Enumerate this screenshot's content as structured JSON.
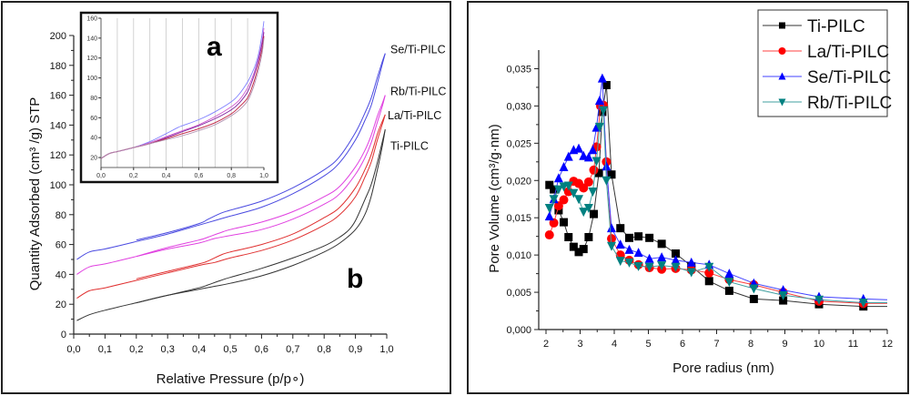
{
  "chart_data": [
    {
      "id": "isotherm",
      "type": "line",
      "title": "",
      "panel_label": "b",
      "xlabel": "Relative Pressure (p/p∘)",
      "ylabel": "Quantity Adsorbed (cm³ /g) STP",
      "xlim": [
        0,
        1.0
      ],
      "ylim": [
        0,
        200
      ],
      "xticks": [
        "0,0",
        "0,1",
        "0,2",
        "0,3",
        "0,4",
        "0,5",
        "0,6",
        "0,7",
        "0,8",
        "0,9",
        "1,0"
      ],
      "yticks": [
        "0",
        "20",
        "40",
        "60",
        "80",
        "100",
        "120",
        "140",
        "160",
        "180",
        "200"
      ],
      "grid": false,
      "legend": "inline labels at right end of curves",
      "series": [
        {
          "name": "Ti-PILC",
          "color": "#333333",
          "label_value": 137,
          "adsorption": {
            "x": [
              0.01,
              0.05,
              0.1,
              0.2,
              0.3,
              0.4,
              0.45,
              0.5,
              0.6,
              0.7,
              0.8,
              0.85,
              0.9,
              0.93,
              0.95,
              0.97,
              0.985,
              0.995
            ],
            "y": [
              9,
              13,
              16,
              21,
              26,
              30,
              32,
              34,
              39,
              46,
              55,
              61,
              70,
              80,
              92,
              110,
              125,
              137
            ]
          },
          "desorption": {
            "x": [
              0.2,
              0.3,
              0.4,
              0.43,
              0.47,
              0.5,
              0.6,
              0.7,
              0.8,
              0.85,
              0.88,
              0.9,
              0.93,
              0.95,
              0.97,
              0.985,
              0.995
            ],
            "y": [
              21,
              26,
              31,
              33,
              36,
              38,
              44,
              51,
              59,
              65,
              70,
              76,
              90,
              100,
              115,
              128,
              137
            ]
          }
        },
        {
          "name": "La/Ti-PILC",
          "color": "#e03030",
          "label_value": 147,
          "adsorption": {
            "x": [
              0.01,
              0.05,
              0.1,
              0.2,
              0.3,
              0.4,
              0.45,
              0.5,
              0.6,
              0.7,
              0.8,
              0.85,
              0.9,
              0.93,
              0.95,
              0.97,
              0.985,
              0.995
            ],
            "y": [
              24,
              29,
              31,
              36,
              41,
              46,
              48,
              51,
              56,
              63,
              73,
              80,
              92,
              105,
              115,
              130,
              140,
              147
            ]
          },
          "desorption": {
            "x": [
              0.2,
              0.3,
              0.4,
              0.43,
              0.47,
              0.5,
              0.6,
              0.7,
              0.8,
              0.85,
              0.9,
              0.93,
              0.95,
              0.97,
              0.985,
              0.995
            ],
            "y": [
              37,
              42,
              47,
              49,
              53,
              55,
              60,
              67,
              78,
              85,
              98,
              110,
              120,
              134,
              142,
              147
            ]
          }
        },
        {
          "name": "Rb/Ti-PILC",
          "color": "#e040e0",
          "label_value": 160,
          "adsorption": {
            "x": [
              0.01,
              0.05,
              0.1,
              0.2,
              0.3,
              0.4,
              0.45,
              0.5,
              0.6,
              0.7,
              0.8,
              0.85,
              0.9,
              0.93,
              0.95,
              0.97,
              0.985,
              0.995
            ],
            "y": [
              40,
              45,
              47,
              52,
              57,
              61,
              64,
              66,
              70,
              77,
              87,
              94,
              107,
              118,
              128,
              142,
              152,
              160
            ]
          },
          "desorption": {
            "x": [
              0.2,
              0.3,
              0.4,
              0.43,
              0.47,
              0.5,
              0.6,
              0.7,
              0.8,
              0.85,
              0.9,
              0.93,
              0.95,
              0.97,
              0.985,
              0.995
            ],
            "y": [
              52,
              58,
              63,
              65,
              68,
              70,
              75,
              82,
              92,
              99,
              112,
              123,
              133,
              146,
              154,
              160
            ]
          }
        },
        {
          "name": "Se/Ti-PILC",
          "color": "#4a4ae0",
          "label_value": 188,
          "adsorption": {
            "x": [
              0.01,
              0.05,
              0.1,
              0.2,
              0.3,
              0.4,
              0.45,
              0.5,
              0.6,
              0.7,
              0.8,
              0.85,
              0.9,
              0.93,
              0.95,
              0.97,
              0.985,
              0.995
            ],
            "y": [
              50,
              55,
              57,
              62,
              67,
              73,
              76,
              79,
              85,
              94,
              106,
              115,
              130,
              143,
              153,
              168,
              180,
              188
            ]
          },
          "desorption": {
            "x": [
              0.2,
              0.3,
              0.4,
              0.43,
              0.47,
              0.5,
              0.6,
              0.7,
              0.8,
              0.85,
              0.9,
              0.93,
              0.95,
              0.97,
              0.985,
              0.995
            ],
            "y": [
              63,
              68,
              74,
              77,
              81,
              83,
              89,
              98,
              110,
              119,
              135,
              148,
              158,
              172,
              182,
              188
            ]
          }
        }
      ],
      "inset": {
        "panel_label": "a",
        "xlim": [
          0,
          1.0
        ],
        "ylim": [
          10,
          160
        ],
        "xticks": [
          "0,0",
          "0,2",
          "0,4",
          "0,6",
          "0,8",
          "1,0"
        ],
        "yticks": [
          "20",
          "40",
          "60",
          "80",
          "100",
          "120",
          "140",
          "160"
        ],
        "grid": "vertical lines at every 0.1",
        "series": [
          {
            "color": "#8080ff",
            "x": [
              0.0,
              0.05,
              0.1,
              0.2,
              0.3,
              0.4,
              0.47,
              0.5,
              0.6,
              0.7,
              0.8,
              0.85,
              0.9,
              0.93,
              0.95,
              0.97,
              0.99,
              1.0
            ],
            "y": [
              19,
              24,
              26,
              30,
              36,
              44,
              50,
              52,
              58,
              66,
              76,
              84,
              96,
              106,
              114,
              126,
              145,
              157
            ]
          },
          {
            "color": "#d060d0",
            "x": [
              0.0,
              0.05,
              0.1,
              0.2,
              0.3,
              0.4,
              0.5,
              0.6,
              0.7,
              0.8,
              0.85,
              0.9,
              0.93,
              0.95,
              0.97,
              0.99,
              1.0
            ],
            "y": [
              19,
              24,
              26,
              30,
              35,
              41,
              47,
              53,
              61,
              71,
              78,
              90,
              101,
              110,
              122,
              138,
              150
            ]
          },
          {
            "color": "#8020a0",
            "x": [
              0.0,
              0.05,
              0.1,
              0.2,
              0.3,
              0.4,
              0.5,
              0.6,
              0.7,
              0.8,
              0.85,
              0.9,
              0.93,
              0.95,
              0.97,
              0.99,
              1.0
            ],
            "y": [
              19,
              24,
              26,
              30,
              34,
              40,
              46,
              52,
              59,
              68,
              75,
              86,
              98,
              108,
              120,
              135,
              146
            ]
          },
          {
            "color": "#c02040",
            "x": [
              0.0,
              0.05,
              0.1,
              0.2,
              0.3,
              0.4,
              0.5,
              0.6,
              0.7,
              0.8,
              0.85,
              0.9,
              0.93,
              0.95,
              0.97,
              0.99,
              1.0
            ],
            "y": [
              19,
              24,
              26,
              30,
              34,
              39,
              44,
              49,
              55,
              64,
              71,
              80,
              92,
              102,
              115,
              130,
              142
            ]
          },
          {
            "color": "#b090b0",
            "x": [
              0.0,
              0.05,
              0.1,
              0.2,
              0.3,
              0.4,
              0.5,
              0.6,
              0.7,
              0.8,
              0.85,
              0.9,
              0.93,
              0.95,
              0.97,
              0.99,
              1.0
            ],
            "y": [
              19,
              24,
              26,
              30,
              34,
              38,
              42,
              47,
              53,
              62,
              68,
              77,
              88,
              98,
              110,
              126,
              140
            ]
          }
        ]
      }
    },
    {
      "id": "psd",
      "type": "line",
      "title": "",
      "xlabel": "Pore radius (nm)",
      "ylabel": "Pore Volume (cm³/g·nm)",
      "xlim": [
        1.8,
        12
      ],
      "ylim": [
        0,
        0.0375
      ],
      "xticks": [
        "2",
        "3",
        "4",
        "5",
        "6",
        "7",
        "8",
        "9",
        "10",
        "11",
        "12"
      ],
      "yticks": [
        "0,000",
        "0,005",
        "0,010",
        "0,015",
        "0,020",
        "0,025",
        "0,030",
        "0,035"
      ],
      "grid": false,
      "legend": "top-right",
      "series": [
        {
          "name": "Ti-PILC",
          "color": "#000000",
          "line_color": "#333333",
          "marker": "square",
          "x": [
            2.1,
            2.23,
            2.37,
            2.52,
            2.66,
            2.81,
            2.96,
            3.1,
            3.25,
            3.4,
            3.55,
            3.65,
            3.77,
            3.92,
            4.18,
            4.44,
            4.71,
            5.03,
            5.39,
            5.8,
            6.26,
            6.78,
            7.37,
            8.09,
            8.95,
            10.0,
            11.3,
            12.0
          ],
          "y": [
            0.0194,
            0.0188,
            0.016,
            0.0144,
            0.0124,
            0.0111,
            0.0104,
            0.0108,
            0.0124,
            0.0155,
            0.021,
            0.0292,
            0.0328,
            0.0208,
            0.0136,
            0.0123,
            0.0125,
            0.0123,
            0.0115,
            0.0102,
            0.0085,
            0.0065,
            0.0052,
            0.0041,
            0.0039,
            0.0034,
            0.0031,
            0.0031
          ]
        },
        {
          "name": "La/Ti-PILC",
          "color": "#ff0000",
          "line_color": "#ff4040",
          "marker": "circle",
          "x": [
            2.1,
            2.23,
            2.37,
            2.52,
            2.66,
            2.81,
            2.96,
            3.1,
            3.25,
            3.4,
            3.48,
            3.6,
            3.68,
            3.77,
            3.92,
            4.18,
            4.44,
            4.71,
            5.03,
            5.39,
            5.8,
            6.26,
            6.78,
            7.37,
            8.09,
            8.95,
            10.0,
            11.3,
            12.0
          ],
          "y": [
            0.0127,
            0.0143,
            0.0166,
            0.0174,
            0.0185,
            0.0199,
            0.0196,
            0.019,
            0.0198,
            0.0214,
            0.0245,
            0.03,
            0.0301,
            0.0225,
            0.0122,
            0.01,
            0.0093,
            0.0087,
            0.0083,
            0.0081,
            0.0082,
            0.008,
            0.0076,
            0.0067,
            0.006,
            0.005,
            0.0038,
            0.0035,
            0.0035
          ]
        },
        {
          "name": "Se/Ti-PILC",
          "color": "#0000ff",
          "line_color": "#4040ff",
          "marker": "triangle-up",
          "x": [
            2.1,
            2.23,
            2.37,
            2.52,
            2.66,
            2.81,
            2.96,
            3.1,
            3.25,
            3.37,
            3.48,
            3.57,
            3.65,
            3.77,
            3.92,
            4.18,
            4.44,
            4.71,
            5.03,
            5.39,
            5.8,
            6.26,
            6.78,
            7.37,
            8.09,
            8.95,
            10.0,
            11.3,
            12.0
          ],
          "y": [
            0.0152,
            0.0175,
            0.0203,
            0.0218,
            0.0232,
            0.0241,
            0.0243,
            0.0233,
            0.0231,
            0.0241,
            0.0271,
            0.0307,
            0.0337,
            0.0219,
            0.0136,
            0.0114,
            0.0107,
            0.0103,
            0.0095,
            0.0097,
            0.0093,
            0.009,
            0.0087,
            0.0075,
            0.0062,
            0.0053,
            0.0044,
            0.0041,
            0.004
          ]
        },
        {
          "name": "Rb/Ti-PILC",
          "color": "#008080",
          "line_color": "#40a0a0",
          "marker": "triangle-down",
          "x": [
            2.1,
            2.23,
            2.37,
            2.52,
            2.66,
            2.81,
            2.96,
            3.1,
            3.25,
            3.37,
            3.48,
            3.57,
            3.68,
            3.77,
            3.92,
            4.18,
            4.44,
            4.71,
            5.03,
            5.39,
            5.8,
            6.26,
            6.78,
            7.37,
            8.09,
            8.95,
            10.0,
            11.3,
            12.0
          ],
          "y": [
            0.0163,
            0.0175,
            0.0188,
            0.0192,
            0.0193,
            0.0183,
            0.0175,
            0.0158,
            0.0163,
            0.0185,
            0.0226,
            0.0272,
            0.0294,
            0.02,
            0.0112,
            0.0092,
            0.009,
            0.0085,
            0.0084,
            0.0086,
            0.0084,
            0.0077,
            0.0084,
            0.0064,
            0.0055,
            0.0046,
            0.004,
            0.0036,
            0.0036
          ]
        }
      ]
    }
  ]
}
